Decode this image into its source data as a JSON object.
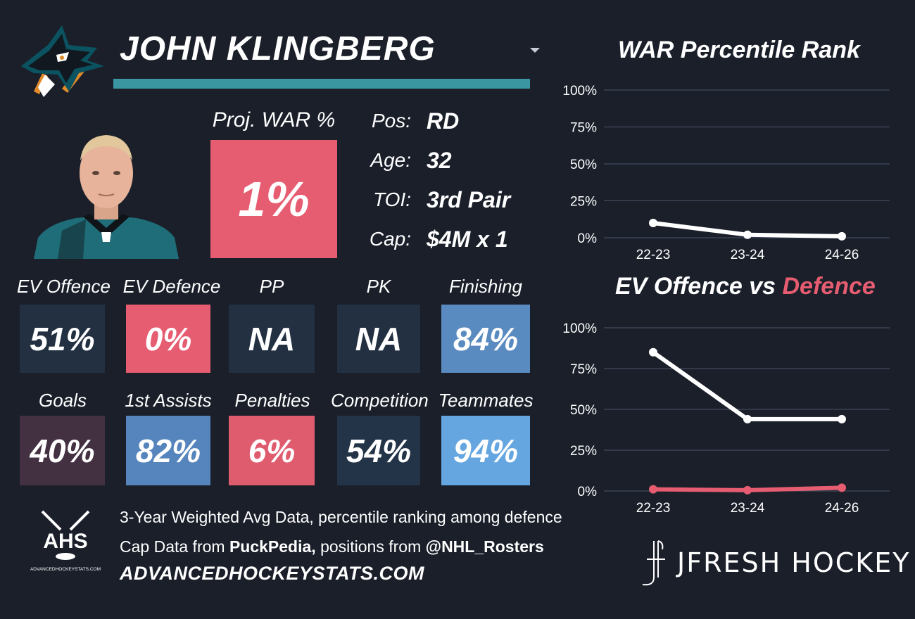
{
  "player": {
    "name": "JOHN KLINGBERG",
    "proj_war_label": "Proj. WAR %",
    "proj_war_value": "1%",
    "info": [
      {
        "key": "Pos:",
        "value": "RD"
      },
      {
        "key": "Age:",
        "value": "32"
      },
      {
        "key": "TOI:",
        "value": "3rd Pair"
      },
      {
        "key": "Cap:",
        "value": "$4M x 1"
      }
    ]
  },
  "stats_row1": [
    {
      "label": "EV Offence",
      "value": "51%",
      "color": "#223041"
    },
    {
      "label": "EV Defence",
      "value": "0%",
      "color": "#e65c70"
    },
    {
      "label": "PP",
      "value": "NA",
      "color": "#223041"
    },
    {
      "label": "PK",
      "value": "NA",
      "color": "#223041"
    },
    {
      "label": "Finishing",
      "value": "84%",
      "color": "#5a8bc0"
    }
  ],
  "stats_row2": [
    {
      "label": "Goals",
      "value": "40%",
      "color": "#433141"
    },
    {
      "label": "1st Assists",
      "value": "82%",
      "color": "#5585bc"
    },
    {
      "label": "Penalties",
      "value": "6%",
      "color": "#df5c6e"
    },
    {
      "label": "Competition",
      "value": "54%",
      "color": "#243448"
    },
    {
      "label": "Teammates",
      "value": "94%",
      "color": "#66a6e0"
    }
  ],
  "footer": {
    "line1": "3-Year Weighted Avg Data, percentile ranking among defence",
    "line2_prefix": "Cap Data from ",
    "line2_source1": "PuckPedia,",
    "line2_mid": " positions from ",
    "line2_source2": "@NHL_Rosters",
    "url": "ADVANCEDHOCKEYSTATS.COM",
    "ahs_logo_text": "AHS",
    "ahs_logo_subtext": "ADVANCEDHOCKEYSTATS.COM",
    "brand": "JFRESH HOCKEY"
  },
  "icons": {
    "team_logo": "sharks-logo-icon",
    "dropdown": "chevron-down-icon",
    "ahs": "ahs-logo-icon",
    "jfresh": "jfresh-logo-icon"
  },
  "colors": {
    "background": "#1a1f2a",
    "accent_teal": "#3a96a0",
    "red": "#e65c70",
    "grid": "#4a5568"
  },
  "chart_data": [
    {
      "type": "line",
      "title": "WAR Percentile Rank",
      "categories": [
        "22-23",
        "23-24",
        "24-26"
      ],
      "series": [
        {
          "color": "#ffffff",
          "values": [
            10,
            2,
            1
          ]
        }
      ],
      "yticks": [
        "100%",
        "75%",
        "50%",
        "25%",
        "0%"
      ],
      "ylim": [
        0,
        100
      ],
      "grid": true
    },
    {
      "type": "line",
      "title_parts": [
        "EV Offence vs ",
        "Defence"
      ],
      "title_colors": [
        "#ffffff",
        "#e65c70"
      ],
      "categories": [
        "22-23",
        "23-24",
        "24-26"
      ],
      "series": [
        {
          "color": "#ffffff",
          "values": [
            85,
            44,
            44
          ]
        },
        {
          "color": "#e65c70",
          "values": [
            1,
            0.5,
            2
          ]
        }
      ],
      "yticks": [
        "100%",
        "75%",
        "50%",
        "25%",
        "0%"
      ],
      "ylim": [
        0,
        100
      ],
      "grid": true
    }
  ]
}
